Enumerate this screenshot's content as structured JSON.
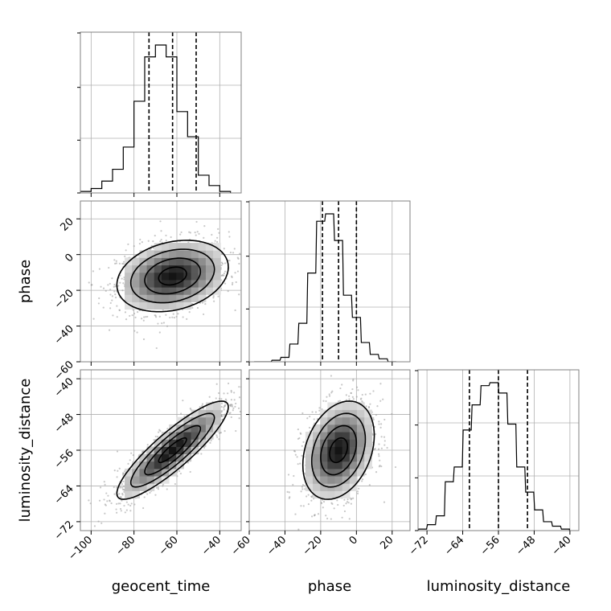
{
  "chart_data": {
    "type": "corner",
    "parameters": [
      "geocent_time",
      "phase",
      "luminosity_distance"
    ],
    "axis_labels": {
      "x": [
        "geocent_time",
        "phase",
        "luminosity_distance"
      ],
      "y": [
        "phase",
        "luminosity_distance"
      ]
    },
    "ranges": {
      "geocent_time": [
        -105,
        -30
      ],
      "phase": [
        -60,
        30
      ],
      "luminosity_distance": [
        -74,
        -38
      ]
    },
    "ticks": {
      "geocent_time": [
        -100,
        -80,
        -60,
        -40
      ],
      "phase": [
        -60,
        -40,
        -20,
        0,
        20
      ],
      "luminosity_distance": [
        -72,
        -64,
        -56,
        -48,
        -40
      ]
    },
    "tick_labels": {
      "geocent_time": [
        "−100",
        "−80",
        "−60",
        "−40"
      ],
      "phase_x": [
        "−60",
        "−40",
        "−20",
        "0",
        "20"
      ],
      "phase_y": [
        "20",
        "0",
        "−20",
        "−40",
        "−60"
      ],
      "luminosity_distance_x": [
        "−72",
        "−64",
        "−56",
        "−48",
        "−40"
      ],
      "luminosity_distance_y": [
        "−40",
        "−48",
        "−56",
        "−64",
        "−72"
      ]
    },
    "quantiles": {
      "geocent_time": [
        -73,
        -62,
        -51
      ],
      "phase": [
        -19,
        -10,
        0
      ],
      "luminosity_distance": [
        -62.5,
        -56,
        -49.5
      ]
    },
    "histograms": {
      "geocent_time": {
        "bins": [
          -102.5,
          -97.5,
          -92.5,
          -87.5,
          -82.5,
          -77.5,
          -72.5,
          -67.5,
          -62.5,
          -57.5,
          -52.5,
          -47.5,
          -42.5,
          -37.5
        ],
        "counts": [
          0.01,
          0.03,
          0.08,
          0.16,
          0.31,
          0.62,
          0.92,
          1.0,
          0.92,
          0.55,
          0.38,
          0.12,
          0.05,
          0.01
        ]
      },
      "phase": {
        "bins": [
          -55,
          -50,
          -45,
          -40,
          -35,
          -30,
          -25,
          -20,
          -15,
          -10,
          -5,
          0,
          5,
          10,
          15,
          20
        ],
        "counts": [
          0.0,
          0.0,
          0.01,
          0.03,
          0.12,
          0.26,
          0.6,
          0.95,
          1.0,
          0.82,
          0.45,
          0.3,
          0.13,
          0.05,
          0.02,
          0.0
        ],
        "bin_width": 4.5
      },
      "luminosity_distance": {
        "bins": [
          -73,
          -71,
          -69,
          -67,
          -65,
          -63,
          -61,
          -59,
          -57,
          -55,
          -53,
          -51,
          -49,
          -47,
          -45,
          -43,
          -41
        ],
        "counts": [
          0.01,
          0.04,
          0.1,
          0.33,
          0.43,
          0.68,
          0.85,
          0.98,
          1.0,
          0.93,
          0.72,
          0.43,
          0.26,
          0.14,
          0.06,
          0.03,
          0.01
        ],
        "bin_width": 1.8
      }
    },
    "scatter_2d": [
      {
        "x": "geocent_time",
        "y": "phase",
        "center": [
          -62,
          -12
        ],
        "sigma": [
          13,
          10
        ],
        "correlation": 0.25,
        "n_points": 1300
      },
      {
        "x": "geocent_time",
        "y": "luminosity_distance",
        "center": [
          -62,
          -56
        ],
        "sigma": [
          13,
          5.5
        ],
        "correlation": 0.88,
        "n_points": 1300
      },
      {
        "x": "phase",
        "y": "luminosity_distance",
        "center": [
          -10,
          -56
        ],
        "sigma": [
          10,
          5.5
        ],
        "correlation": 0.3,
        "n_points": 1300
      }
    ],
    "contour_levels": [
      0.5,
      1.0,
      1.5,
      2.0
    ],
    "grid": true
  }
}
